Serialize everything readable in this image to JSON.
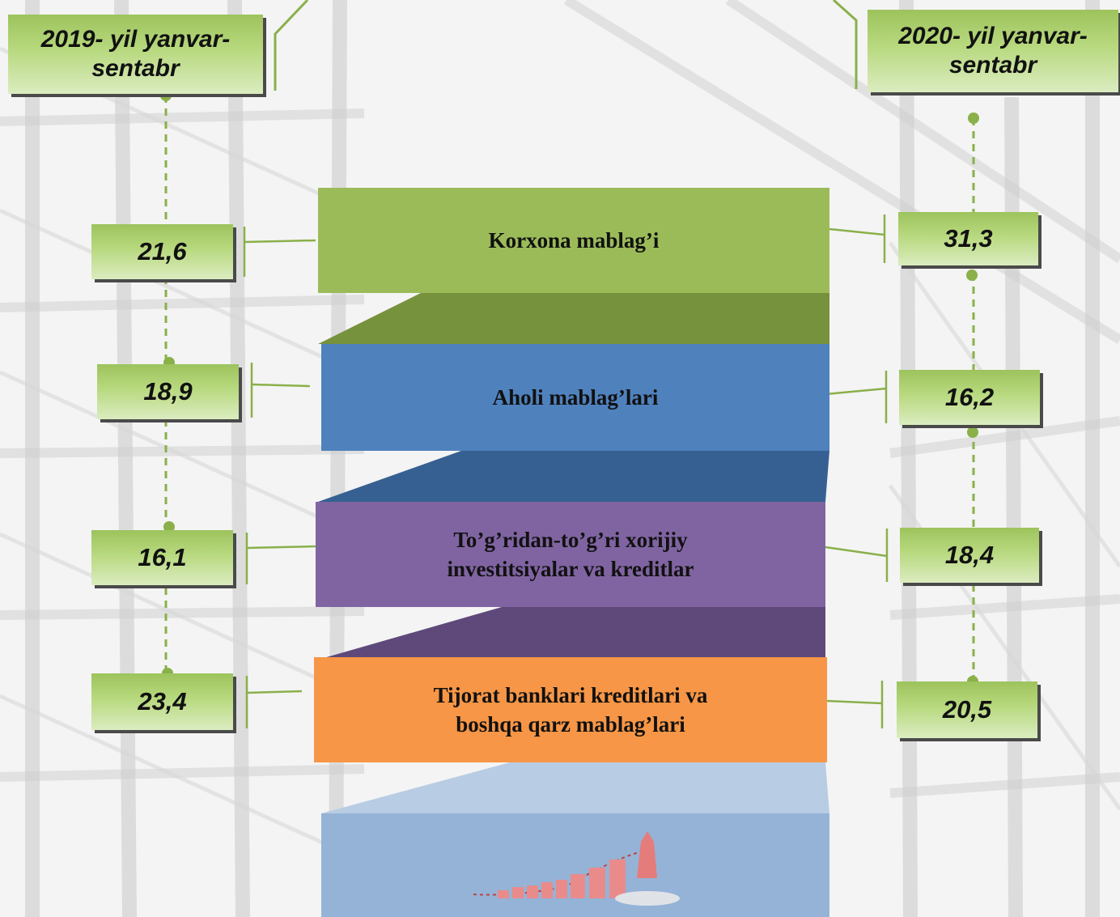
{
  "headers": {
    "left": "2019- yil yanvar-sentabr",
    "right": "2020- yil yanvar-sentabr"
  },
  "categories": [
    {
      "label": "Korxona mablag’i",
      "color": "#9bbb59",
      "v2019": "21,6",
      "v2020": "31,3"
    },
    {
      "label": "Aholi mablag’lari",
      "color": "#4f81bd",
      "v2019": "18,9",
      "v2020": "16,2"
    },
    {
      "label": "To’g’ridan-to’g’ri xorijiy investitsiyalar va kreditlar",
      "color": "#8064a2",
      "v2019": "16,1",
      "v2020": "18,4"
    },
    {
      "label": "Tijorat banklari kreditlari va boshqa qarz mablag’lari",
      "color": "#f79646",
      "v2019": "23,4",
      "v2020": "20,5"
    }
  ],
  "colors": {
    "label_green": "#9bbb59",
    "connector": "#8ab04a",
    "bottom_panel": "#95b3d7"
  },
  "icons": [
    "growth-chart-rocket-icon"
  ]
}
